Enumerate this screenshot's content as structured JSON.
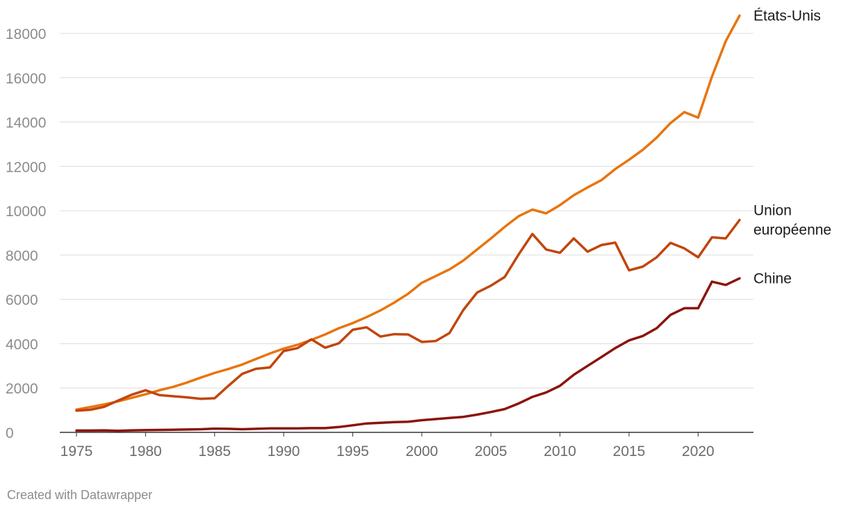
{
  "chart_data": {
    "type": "line",
    "title": "",
    "xlabel": "",
    "ylabel": "",
    "xlim": [
      1975,
      2023
    ],
    "ylim": [
      0,
      18000
    ],
    "y_ticks": [
      0,
      2000,
      4000,
      6000,
      8000,
      10000,
      12000,
      14000,
      16000,
      18000
    ],
    "x_ticks": [
      1975,
      1980,
      1985,
      1990,
      1995,
      2000,
      2005,
      2010,
      2015,
      2020
    ],
    "grid": "horizontal",
    "x": [
      1975,
      1976,
      1977,
      1978,
      1979,
      1980,
      1981,
      1982,
      1983,
      1984,
      1985,
      1986,
      1987,
      1988,
      1989,
      1990,
      1991,
      1992,
      1993,
      1994,
      1995,
      1996,
      1997,
      1998,
      1999,
      2000,
      2001,
      2002,
      2003,
      2004,
      2005,
      2006,
      2007,
      2008,
      2009,
      2010,
      2011,
      2012,
      2013,
      2014,
      2015,
      2016,
      2017,
      2018,
      2019,
      2020,
      2021,
      2022,
      2023
    ],
    "series": [
      {
        "name": "États-Unis",
        "color": "#e8740f",
        "label_lines": [
          "États-Unis"
        ],
        "values": [
          1030,
          1140,
          1260,
          1400,
          1560,
          1720,
          1900,
          2050,
          2250,
          2470,
          2680,
          2860,
          3060,
          3310,
          3560,
          3780,
          3950,
          4170,
          4420,
          4700,
          4930,
          5200,
          5500,
          5850,
          6250,
          6750,
          7050,
          7350,
          7750,
          8250,
          8750,
          9270,
          9750,
          10050,
          9880,
          10250,
          10700,
          11050,
          11380,
          11880,
          12300,
          12750,
          13300,
          13950,
          14450,
          14200,
          16050,
          17650,
          18800
        ]
      },
      {
        "name": "Union européenne",
        "color": "#c2450c",
        "label_lines": [
          "Union",
          "européenne"
        ],
        "values": [
          980,
          1020,
          1150,
          1430,
          1700,
          1900,
          1680,
          1630,
          1580,
          1510,
          1540,
          2100,
          2640,
          2870,
          2930,
          3670,
          3800,
          4200,
          3820,
          4020,
          4630,
          4740,
          4320,
          4430,
          4420,
          4080,
          4120,
          4480,
          5520,
          6310,
          6620,
          7010,
          8020,
          8950,
          8250,
          8100,
          8750,
          8150,
          8450,
          8560,
          7310,
          7480,
          7900,
          8550,
          8300,
          7900,
          8800,
          8750,
          9580
        ]
      },
      {
        "name": "Chine",
        "color": "#8a150c",
        "label_lines": [
          "Chine"
        ],
        "values": [
          80,
          80,
          90,
          70,
          90,
          100,
          110,
          120,
          130,
          140,
          170,
          160,
          140,
          160,
          180,
          180,
          180,
          190,
          190,
          240,
          320,
          400,
          430,
          460,
          480,
          550,
          600,
          650,
          700,
          800,
          920,
          1050,
          1300,
          1600,
          1800,
          2100,
          2600,
          3000,
          3400,
          3800,
          4150,
          4350,
          4700,
          5300,
          5600,
          5600,
          6800,
          6650,
          6950
        ]
      }
    ]
  },
  "footer": {
    "credit": "Created with Datawrapper"
  }
}
